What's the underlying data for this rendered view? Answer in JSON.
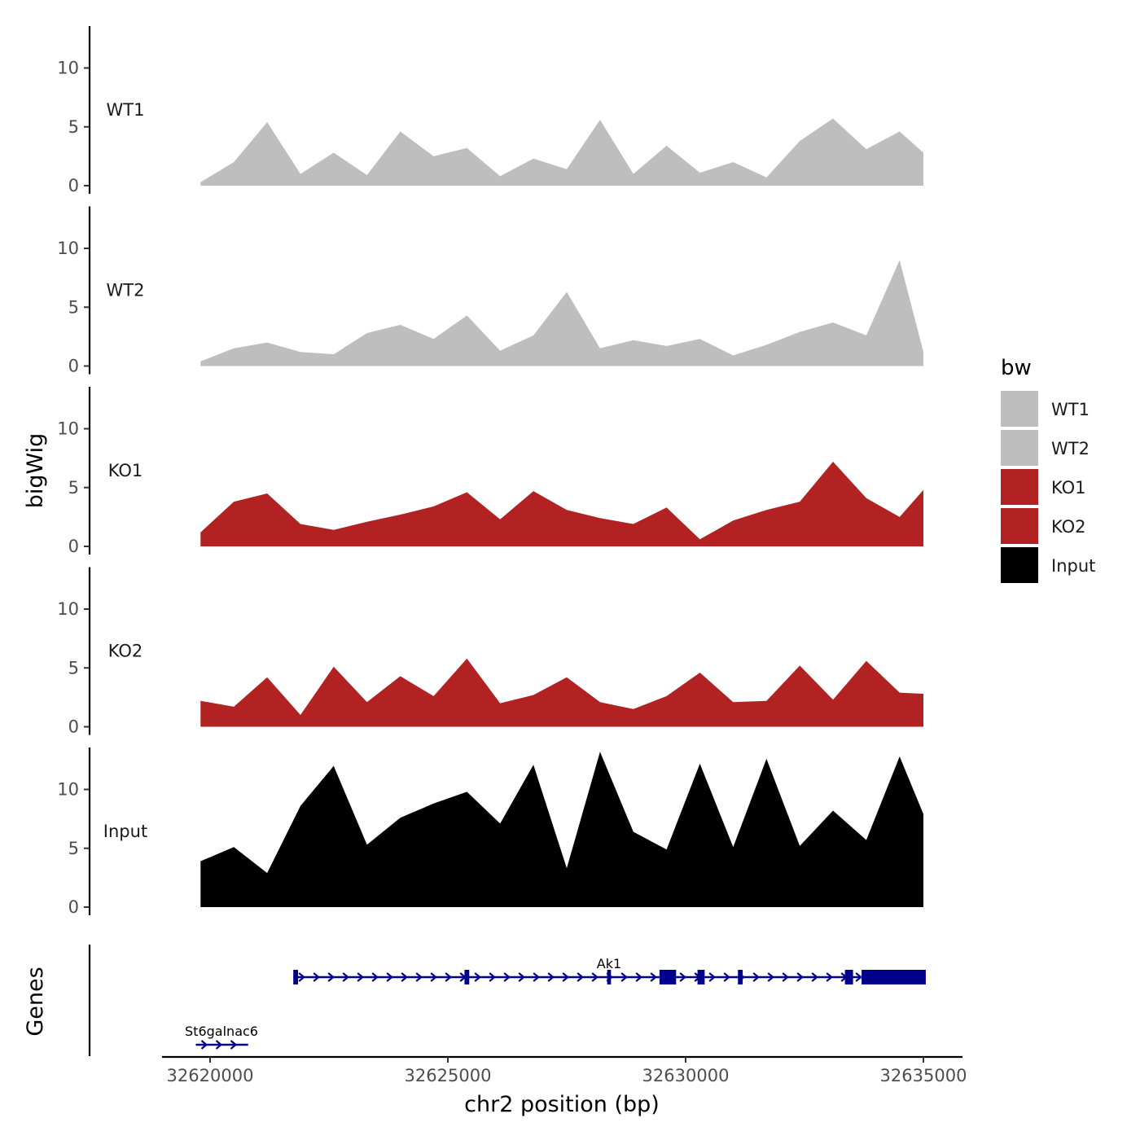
{
  "chart_data": {
    "type": "area",
    "y_axis_label": "bigWig",
    "x_axis_label": "chr2 position (bp)",
    "x_range": [
      32619000,
      32635800
    ],
    "x_ticks": [
      {
        "value": 32620000,
        "label": "32620000"
      },
      {
        "value": 32625000,
        "label": "32625000"
      },
      {
        "value": 32630000,
        "label": "32630000"
      },
      {
        "value": 32635000,
        "label": "32635000"
      }
    ],
    "y_range": [
      0,
      14
    ],
    "y_ticks": [
      {
        "value": 0,
        "label": "0"
      },
      {
        "value": 5,
        "label": "5"
      },
      {
        "value": 10,
        "label": "10"
      }
    ],
    "legend": {
      "title": "bw",
      "position": "right",
      "items": [
        {
          "label": "WT1",
          "color": "#bebebe"
        },
        {
          "label": "WT2",
          "color": "#bebebe"
        },
        {
          "label": "KO1",
          "color": "#b22222"
        },
        {
          "label": "KO2",
          "color": "#b22222"
        },
        {
          "label": "Input",
          "color": "#000000"
        }
      ]
    },
    "x_data": [
      32619800,
      32620500,
      32621200,
      32621900,
      32622600,
      32623300,
      32624000,
      32624700,
      32625400,
      32626100,
      32626800,
      32627500,
      32628200,
      32628900,
      32629600,
      32630300,
      32631000,
      32631700,
      32632400,
      32633100,
      32633800,
      32634500,
      32635000
    ],
    "series": [
      {
        "name": "WT1",
        "label": "WT1",
        "color": "#bebebe",
        "values": [
          0.3,
          2.0,
          5.4,
          1.0,
          2.8,
          0.9,
          4.6,
          2.5,
          3.2,
          0.8,
          2.3,
          1.4,
          5.6,
          1.0,
          3.4,
          1.1,
          2.0,
          0.7,
          3.8,
          5.7,
          3.1,
          4.6,
          2.8
        ]
      },
      {
        "name": "WT2",
        "label": "WT2",
        "color": "#bebebe",
        "values": [
          0.4,
          1.5,
          2.0,
          1.2,
          1.0,
          2.8,
          3.5,
          2.3,
          4.3,
          1.3,
          2.6,
          6.3,
          1.5,
          2.2,
          1.7,
          2.3,
          0.9,
          1.8,
          2.9,
          3.7,
          2.6,
          9.0,
          1.2
        ]
      },
      {
        "name": "KO1",
        "label": "KO1",
        "color": "#b22222",
        "values": [
          1.2,
          3.8,
          4.5,
          1.9,
          1.4,
          2.1,
          2.7,
          3.4,
          4.6,
          2.3,
          4.7,
          3.1,
          2.4,
          1.9,
          3.3,
          0.6,
          2.2,
          3.1,
          3.8,
          7.2,
          4.1,
          2.5,
          4.8
        ]
      },
      {
        "name": "KO2",
        "label": "KO2",
        "color": "#b22222",
        "values": [
          2.2,
          1.7,
          4.2,
          1.0,
          5.1,
          2.1,
          4.3,
          2.6,
          5.8,
          2.0,
          2.7,
          4.2,
          2.1,
          1.5,
          2.6,
          4.6,
          2.1,
          2.2,
          5.2,
          2.3,
          5.6,
          2.9,
          2.8
        ]
      },
      {
        "name": "Input",
        "label": "Input",
        "color": "#000000",
        "values": [
          3.9,
          5.1,
          2.9,
          8.6,
          12.0,
          5.3,
          7.6,
          8.8,
          9.8,
          7.1,
          12.1,
          3.3,
          13.2,
          6.4,
          4.9,
          12.2,
          5.1,
          12.6,
          5.2,
          8.2,
          5.7,
          12.8,
          7.9
        ]
      }
    ],
    "genes_track": {
      "label": "Genes",
      "color": "#00008b",
      "genes": [
        {
          "name": "Ak1",
          "start": 32621750,
          "end": 32635050,
          "strand": "+",
          "exons": [
            [
              32621750,
              32621850
            ],
            [
              32625350,
              32625450
            ],
            [
              32628350,
              32628430
            ],
            [
              32629450,
              32629800
            ],
            [
              32630250,
              32630400
            ],
            [
              32631100,
              32631200
            ],
            [
              32633350,
              32633520
            ],
            [
              32633700,
              32635050
            ]
          ]
        },
        {
          "name": "St6galnac6",
          "start": 32619700,
          "end": 32620800,
          "strand": "+",
          "exons": []
        }
      ]
    }
  }
}
